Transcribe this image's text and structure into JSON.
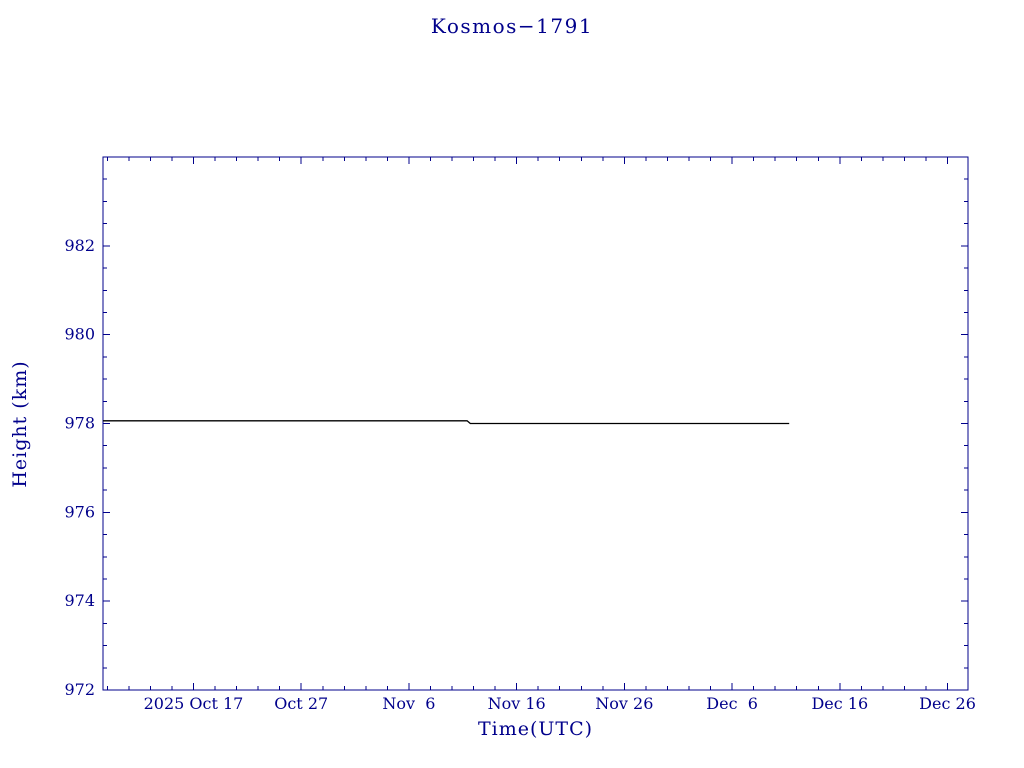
{
  "page": {
    "background": "#ffffff"
  },
  "chart_data": {
    "type": "line",
    "title": "Kosmos−1791",
    "xlabel": "Time(UTC)",
    "ylabel": "Height (km)",
    "axis_color": "#00008b",
    "grid": false,
    "legend": "none",
    "xlim": [
      -8.4,
      71.9
    ],
    "ylim": [
      972,
      984
    ],
    "x_unit": "days since 2025 Oct 17",
    "x_minor_step": 2,
    "y_minor_step": 0.5,
    "x_ticks": [
      {
        "value": 0,
        "label": "2025 Oct 17"
      },
      {
        "value": 10,
        "label": "Oct 27"
      },
      {
        "value": 20,
        "label": "Nov  6"
      },
      {
        "value": 30,
        "label": "Nov 16"
      },
      {
        "value": 40,
        "label": "Nov 26"
      },
      {
        "value": 50,
        "label": "Dec  6"
      },
      {
        "value": 60,
        "label": "Dec 16"
      },
      {
        "value": 70,
        "label": "Dec 26"
      }
    ],
    "y_ticks": [
      {
        "value": 972,
        "label": "972"
      },
      {
        "value": 974,
        "label": "974"
      },
      {
        "value": 976,
        "label": "976"
      },
      {
        "value": 978,
        "label": "978"
      },
      {
        "value": 980,
        "label": "980"
      },
      {
        "value": 982,
        "label": "982"
      }
    ],
    "series": [
      {
        "name": "height",
        "color": "#000000",
        "points": [
          [
            -8.4,
            978.06
          ],
          [
            25.4,
            978.06
          ],
          [
            25.7,
            978.0
          ],
          [
            55.3,
            978.0
          ]
        ]
      }
    ]
  }
}
